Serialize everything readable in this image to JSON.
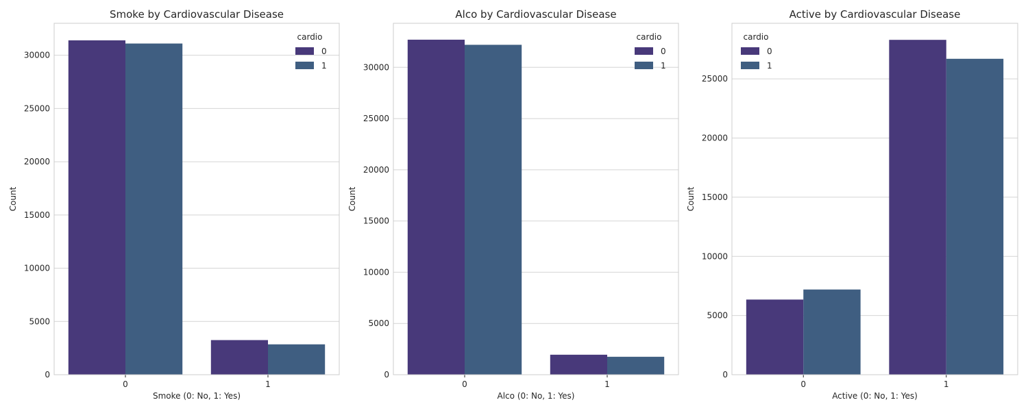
{
  "chart_data": [
    {
      "type": "bar",
      "title": "Smoke by Cardiovascular Disease",
      "xlabel": "Smoke (0: No, 1: Yes)",
      "ylabel": "Count",
      "categories": [
        "0",
        "1"
      ],
      "series": [
        {
          "name": "0",
          "values": [
            31400,
            3250
          ]
        },
        {
          "name": "1",
          "values": [
            31100,
            2850
          ]
        }
      ],
      "ylim": [
        0,
        33000
      ],
      "yticks": [
        0,
        5000,
        10000,
        15000,
        20000,
        25000,
        30000
      ],
      "legend": {
        "title": "cardio",
        "placement": "top-right"
      },
      "grid": "horizontal"
    },
    {
      "type": "bar",
      "title": "Alco by Cardiovascular Disease",
      "xlabel": "Alco (0: No, 1: Yes)",
      "ylabel": "Count",
      "categories": [
        "0",
        "1"
      ],
      "series": [
        {
          "name": "0",
          "values": [
            32700,
            1950
          ]
        },
        {
          "name": "1",
          "values": [
            32200,
            1750
          ]
        }
      ],
      "ylim": [
        0,
        34300
      ],
      "yticks": [
        0,
        5000,
        10000,
        15000,
        20000,
        25000,
        30000
      ],
      "legend": {
        "title": "cardio",
        "placement": "top-right"
      },
      "grid": "horizontal"
    },
    {
      "type": "bar",
      "title": "Active by Cardiovascular Disease",
      "xlabel": "Active (0: No, 1: Yes)",
      "ylabel": "Count",
      "categories": [
        "0",
        "1"
      ],
      "series": [
        {
          "name": "0",
          "values": [
            6350,
            28300
          ]
        },
        {
          "name": "1",
          "values": [
            7200,
            26700
          ]
        }
      ],
      "ylim": [
        0,
        29700
      ],
      "yticks": [
        0,
        5000,
        10000,
        15000,
        20000,
        25000
      ],
      "legend": {
        "title": "cardio",
        "placement": "top-left"
      },
      "grid": "horizontal"
    }
  ],
  "colors": {
    "series": [
      "#48397a",
      "#3f5e81"
    ],
    "grid": "#d4d4d4",
    "frame": "#cccccc"
  }
}
